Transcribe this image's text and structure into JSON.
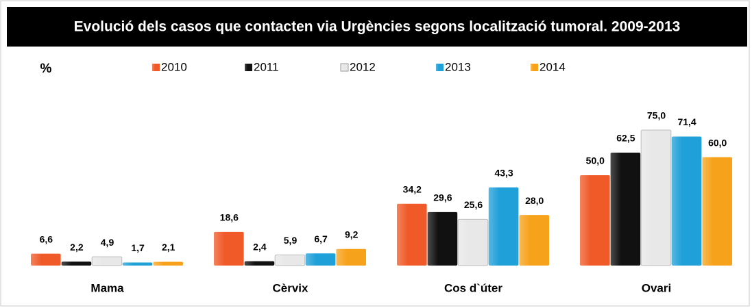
{
  "chart_data": {
    "type": "bar",
    "title": "Evolució dels casos  que contacten via Urgències segons localització tumoral. 2009-2013",
    "y_label": "%",
    "categories": [
      "Mama",
      "Cèrvix",
      "Cos d`úter",
      "Ovari"
    ],
    "series": [
      {
        "name": "2010",
        "color": "#f05a28",
        "values": [
          6.6,
          18.6,
          34.2,
          50.0
        ],
        "value_labels": [
          "6,6",
          "18,6",
          "34,2",
          "50,0"
        ]
      },
      {
        "name": "2011",
        "color": "#111111",
        "values": [
          2.2,
          2.4,
          29.6,
          62.5
        ],
        "value_labels": [
          "2,2",
          "2,4",
          "29,6",
          "62,5"
        ]
      },
      {
        "name": "2012",
        "color": "#e8e8e8",
        "values": [
          4.9,
          5.9,
          25.6,
          75.0
        ],
        "value_labels": [
          "4,9",
          "5,9",
          "25,6",
          "75,0"
        ]
      },
      {
        "name": "2013",
        "color": "#1fa0d8",
        "values": [
          1.7,
          6.7,
          43.3,
          71.4
        ],
        "value_labels": [
          "1,7",
          "6,7",
          "43,3",
          "71,4"
        ]
      },
      {
        "name": "2014",
        "color": "#f7a21b",
        "values": [
          2.1,
          9.2,
          28.0,
          60.0
        ],
        "value_labels": [
          "2,1",
          "9,2",
          "28,0",
          "60,0"
        ]
      }
    ],
    "legend": "top"
  }
}
